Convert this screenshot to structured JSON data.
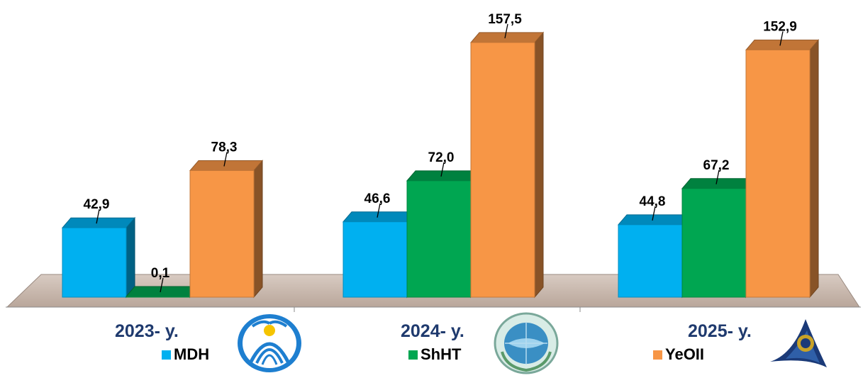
{
  "chart_data": {
    "type": "bar",
    "categories": [
      "2023- y.",
      "2024- y.",
      "2025- y."
    ],
    "series": [
      {
        "name": "MDH",
        "values": [
          42.9,
          46.6,
          44.8
        ],
        "labels": [
          "42,9",
          "46,6",
          "44,8"
        ]
      },
      {
        "name": "ShHT",
        "values": [
          0.1,
          72.0,
          67.2
        ],
        "labels": [
          "0,1",
          "72,0",
          "67,2"
        ]
      },
      {
        "name": "YeOII",
        "values": [
          78.3,
          157.5,
          152.9
        ],
        "labels": [
          "78,3",
          "157,5",
          "152,9"
        ]
      }
    ],
    "legend_position": "bottom",
    "grid": false
  },
  "colors": {
    "MDH": "#00b0f0",
    "ShHT": "#00a651",
    "YeOII": "#f79646",
    "floor": "#c4b0a2",
    "year_text": "#1f3a6e"
  },
  "logos": [
    "cis-emblem-icon",
    "sco-emblem-icon",
    "eaeu-emblem-icon"
  ]
}
